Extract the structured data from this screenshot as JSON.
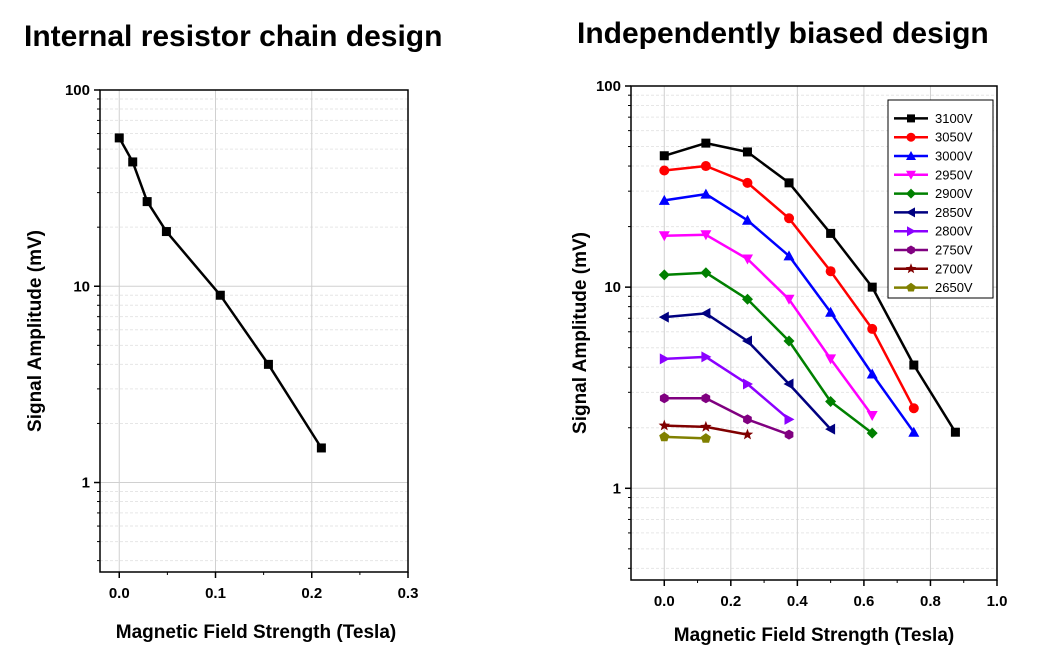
{
  "titles": {
    "left": "Internal resistor chain design",
    "right": "Independently biased design"
  },
  "chart_data": [
    {
      "type": "line",
      "title": "Internal resistor chain design",
      "xlabel": "Magnetic Field Strength (Tesla)",
      "ylabel": "Signal Amplitude (mV)",
      "xlim": [
        -0.02,
        0.3
      ],
      "ylim": [
        0.35,
        100
      ],
      "yscale": "log",
      "x_ticks": [
        0.0,
        0.1,
        0.2,
        0.3
      ],
      "x_tick_labels": [
        "0.0",
        "0.1",
        "0.2",
        "0.3"
      ],
      "y_ticks": [
        1,
        10,
        100
      ],
      "y_tick_labels": [
        "1",
        "10",
        "100"
      ],
      "grid": true,
      "series": [
        {
          "color": "#000000",
          "marker": "square",
          "x": [
            0.0,
            0.014,
            0.029,
            0.049,
            0.105,
            0.155,
            0.21
          ],
          "y": [
            57,
            43,
            27,
            19,
            9,
            4,
            1.5
          ]
        }
      ]
    },
    {
      "type": "line",
      "title": "Independently biased design",
      "xlabel": "Magnetic Field Strength (Tesla)",
      "ylabel": "Signal Amplitude (mV)",
      "xlim": [
        -0.1,
        1.0
      ],
      "ylim": [
        0.35,
        100
      ],
      "yscale": "log",
      "x_ticks": [
        0.0,
        0.2,
        0.4,
        0.6,
        0.8,
        1.0
      ],
      "x_tick_labels": [
        "0.0",
        "0.2",
        "0.4",
        "0.6",
        "0.8",
        "1.0"
      ],
      "y_ticks": [
        1,
        10,
        100
      ],
      "y_tick_labels": [
        "1",
        "10",
        "100"
      ],
      "grid": true,
      "legend_position": "top-right",
      "series": [
        {
          "name": "3100V",
          "color": "#000000",
          "marker": "square",
          "x": [
            0.0,
            0.125,
            0.25,
            0.375,
            0.5,
            0.625,
            0.75,
            0.875
          ],
          "y": [
            45,
            52,
            47,
            33,
            18.5,
            10,
            4.1,
            1.9
          ]
        },
        {
          "name": "3050V",
          "color": "#ff0000",
          "marker": "circle",
          "x": [
            0.0,
            0.125,
            0.25,
            0.375,
            0.5,
            0.625,
            0.75
          ],
          "y": [
            38,
            40,
            33,
            22,
            12,
            6.2,
            2.5
          ]
        },
        {
          "name": "3000V",
          "color": "#0000ff",
          "marker": "triangle-up",
          "x": [
            0.0,
            0.125,
            0.25,
            0.375,
            0.5,
            0.625,
            0.75
          ],
          "y": [
            27,
            29,
            21.5,
            14.3,
            7.5,
            3.7,
            1.9
          ]
        },
        {
          "name": "2950V",
          "color": "#ff00ff",
          "marker": "triangle-down",
          "x": [
            0.0,
            0.125,
            0.25,
            0.375,
            0.5,
            0.625
          ],
          "y": [
            18,
            18.2,
            13.8,
            8.7,
            4.4,
            2.3
          ]
        },
        {
          "name": "2900V",
          "color": "#008000",
          "marker": "diamond",
          "x": [
            0.0,
            0.125,
            0.25,
            0.375,
            0.5,
            0.625
          ],
          "y": [
            11.5,
            11.8,
            8.7,
            5.4,
            2.7,
            1.88
          ]
        },
        {
          "name": "2850V",
          "color": "#000080",
          "marker": "triangle-left",
          "x": [
            0.0,
            0.125,
            0.25,
            0.375,
            0.5
          ],
          "y": [
            7.1,
            7.4,
            5.4,
            3.3,
            1.97
          ]
        },
        {
          "name": "2800V",
          "color": "#8b00ff",
          "marker": "triangle-right",
          "x": [
            0.0,
            0.125,
            0.25,
            0.375
          ],
          "y": [
            4.4,
            4.5,
            3.3,
            2.2
          ]
        },
        {
          "name": "2750V",
          "color": "#800080",
          "marker": "hexagon",
          "x": [
            0.0,
            0.125,
            0.25,
            0.375
          ],
          "y": [
            2.8,
            2.8,
            2.2,
            1.85
          ]
        },
        {
          "name": "2700V",
          "color": "#800000",
          "marker": "star",
          "x": [
            0.0,
            0.125,
            0.25
          ],
          "y": [
            2.05,
            2.02,
            1.85
          ]
        },
        {
          "name": "2650V",
          "color": "#808000",
          "marker": "pentagon",
          "x": [
            0.0,
            0.125
          ],
          "y": [
            1.8,
            1.77
          ]
        }
      ]
    }
  ]
}
